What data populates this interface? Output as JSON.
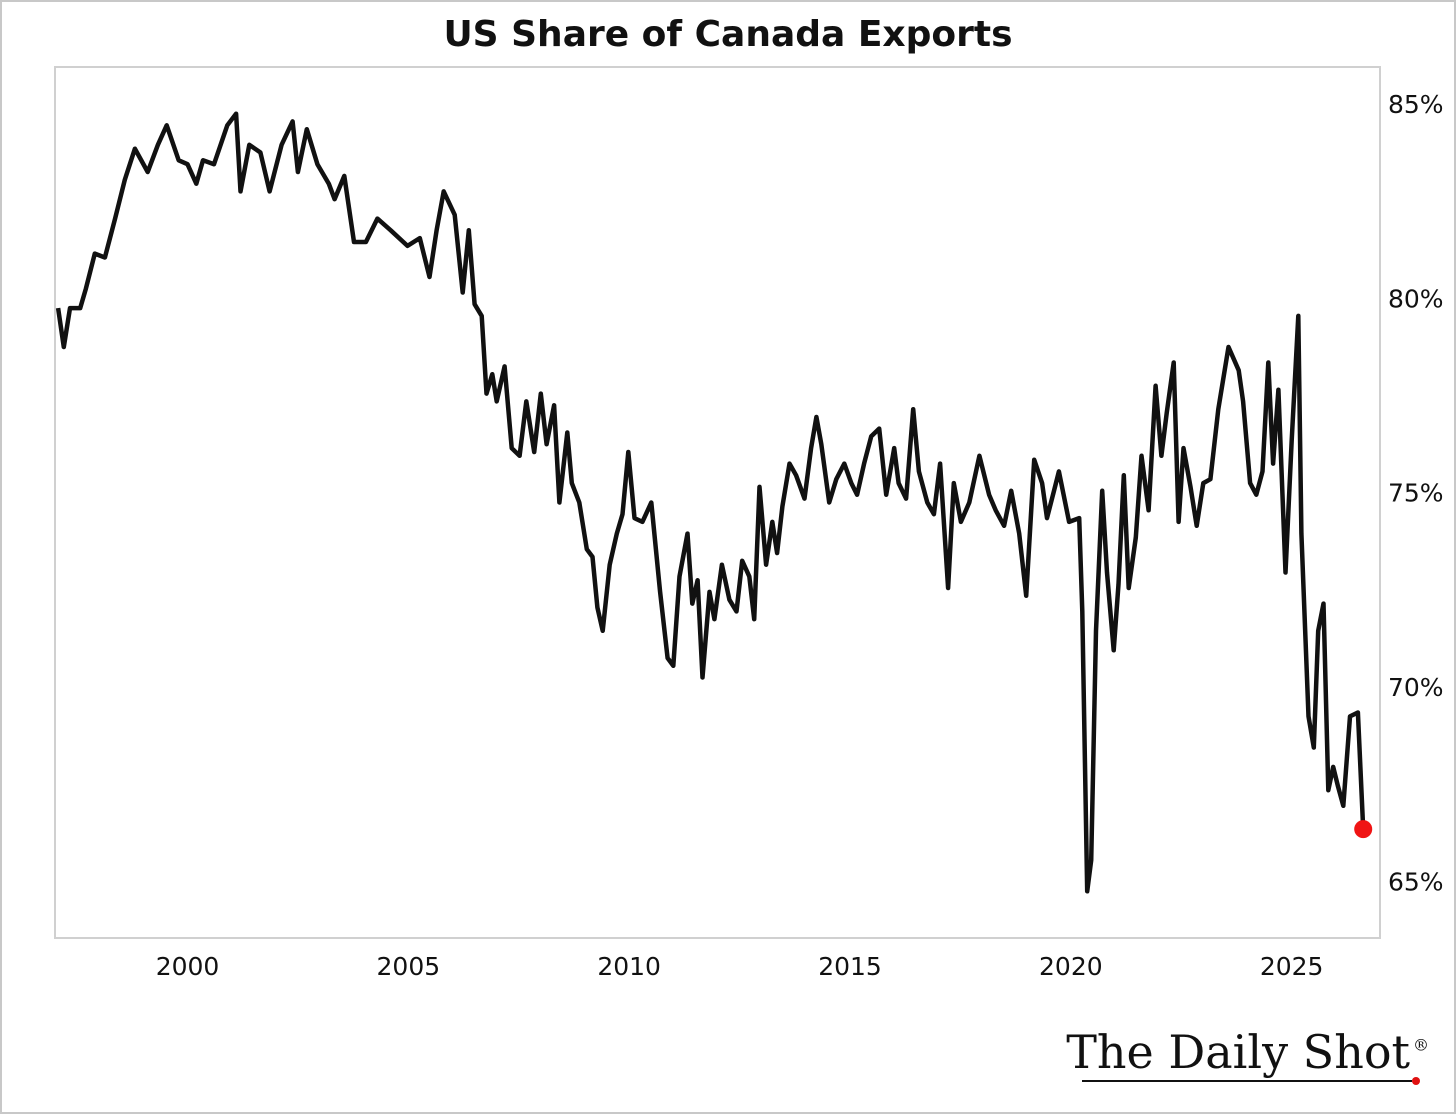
{
  "chart_data": {
    "type": "line",
    "title": "US Share of Canada Exports",
    "x": [
      1997.07,
      1997.2,
      1997.34,
      1997.57,
      1997.7,
      1997.9,
      1998.13,
      1998.36,
      1998.58,
      1998.81,
      1999.1,
      1999.33,
      1999.53,
      1999.8,
      2000.0,
      2000.2,
      2000.35,
      2000.6,
      2000.9,
      2001.1,
      2001.2,
      2001.4,
      2001.65,
      2001.86,
      2002.13,
      2002.38,
      2002.5,
      2002.7,
      2002.94,
      2003.2,
      2003.33,
      2003.55,
      2003.77,
      2004.04,
      2004.3,
      2004.6,
      2004.98,
      2005.26,
      2005.48,
      2005.64,
      2005.8,
      2006.05,
      2006.23,
      2006.37,
      2006.5,
      2006.66,
      2006.77,
      2006.9,
      2007.0,
      2007.18,
      2007.34,
      2007.52,
      2007.67,
      2007.85,
      2008.0,
      2008.13,
      2008.3,
      2008.42,
      2008.6,
      2008.7,
      2008.87,
      2009.04,
      2009.17,
      2009.28,
      2009.4,
      2009.56,
      2009.72,
      2009.85,
      2009.98,
      2010.12,
      2010.3,
      2010.5,
      2010.7,
      2010.87,
      2011.0,
      2011.14,
      2011.32,
      2011.43,
      2011.55,
      2011.66,
      2011.82,
      2011.93,
      2012.1,
      2012.27,
      2012.43,
      2012.56,
      2012.72,
      2012.83,
      2012.95,
      2013.1,
      2013.24,
      2013.35,
      2013.47,
      2013.63,
      2013.78,
      2013.97,
      2014.12,
      2014.24,
      2014.35,
      2014.53,
      2014.69,
      2014.87,
      2015.03,
      2015.16,
      2015.32,
      2015.48,
      2015.66,
      2015.82,
      2016.0,
      2016.1,
      2016.27,
      2016.43,
      2016.56,
      2016.75,
      2016.9,
      2017.04,
      2017.22,
      2017.35,
      2017.51,
      2017.7,
      2017.93,
      2018.15,
      2018.3,
      2018.49,
      2018.65,
      2018.83,
      2018.99,
      2019.17,
      2019.35,
      2019.46,
      2019.62,
      2019.73,
      2019.96,
      2020.19,
      2020.26,
      2020.37,
      2020.46,
      2020.57,
      2020.71,
      2020.82,
      2020.97,
      2021.08,
      2021.2,
      2021.31,
      2021.47,
      2021.6,
      2021.76,
      2021.92,
      2022.05,
      2022.17,
      2022.33,
      2022.44,
      2022.55,
      2022.71,
      2022.85,
      2023.0,
      2023.16,
      2023.34,
      2023.57,
      2023.8,
      2023.9,
      2024.06,
      2024.2,
      2024.34,
      2024.47,
      2024.58,
      2024.7,
      2024.86,
      2025.0,
      2025.15,
      2025.22,
      2025.38,
      2025.5,
      2025.6,
      2025.72,
      2025.83,
      2025.94,
      2026.05,
      2026.17,
      2026.32,
      2026.5,
      2026.62
    ],
    "values": [
      79.8,
      78.8,
      79.8,
      79.8,
      80.3,
      81.2,
      81.1,
      82.1,
      83.1,
      83.9,
      83.3,
      84.0,
      84.5,
      83.6,
      83.5,
      83.0,
      83.6,
      83.5,
      84.5,
      84.8,
      82.8,
      84.0,
      83.8,
      82.8,
      84.0,
      84.6,
      83.3,
      84.4,
      83.5,
      83.0,
      82.6,
      83.2,
      81.5,
      81.5,
      82.1,
      81.8,
      81.4,
      81.6,
      80.6,
      81.8,
      82.8,
      82.2,
      80.2,
      81.8,
      79.9,
      79.6,
      77.6,
      78.1,
      77.4,
      78.3,
      76.2,
      76.0,
      77.4,
      76.1,
      77.6,
      76.3,
      77.3,
      74.8,
      76.6,
      75.3,
      74.8,
      73.6,
      73.4,
      72.1,
      71.5,
      73.2,
      74.0,
      74.5,
      76.1,
      74.4,
      74.3,
      74.8,
      72.5,
      70.8,
      70.6,
      72.9,
      74.0,
      72.2,
      72.8,
      70.3,
      72.5,
      71.8,
      73.2,
      72.3,
      72.0,
      73.3,
      72.9,
      71.8,
      75.2,
      73.2,
      74.3,
      73.5,
      74.7,
      75.8,
      75.5,
      74.9,
      76.2,
      77.0,
      76.3,
      74.8,
      75.4,
      75.8,
      75.3,
      75.0,
      75.8,
      76.5,
      76.7,
      75.0,
      76.2,
      75.3,
      74.9,
      77.2,
      75.6,
      74.8,
      74.5,
      75.8,
      72.6,
      75.3,
      74.3,
      74.8,
      76.0,
      75.0,
      74.6,
      74.2,
      75.1,
      74.0,
      72.4,
      75.9,
      75.3,
      74.4,
      75.1,
      75.6,
      74.3,
      74.4,
      72.0,
      64.8,
      65.6,
      71.5,
      75.1,
      73.0,
      71.0,
      72.7,
      75.5,
      72.6,
      73.9,
      76.0,
      74.6,
      77.8,
      76.0,
      77.1,
      78.4,
      74.3,
      76.2,
      75.2,
      74.2,
      75.3,
      75.4,
      77.2,
      78.8,
      78.2,
      77.4,
      75.3,
      75.0,
      75.6,
      78.4,
      75.8,
      77.7,
      73.0,
      76.4,
      79.6,
      74.0,
      69.3,
      68.5,
      71.5,
      72.2,
      67.4,
      68.0,
      67.5,
      67.0,
      69.3,
      69.4,
      66.4
    ],
    "color": "#111111",
    "highlight_color": "#f01414",
    "xlim": [
      1997,
      2027
    ],
    "xticks": [
      2000,
      2005,
      2010,
      2015,
      2020,
      2025
    ],
    "ylim": [
      63.6,
      86
    ],
    "yticks": [
      {
        "value": 65,
        "label": "65%"
      },
      {
        "value": 70,
        "label": "70%"
      },
      {
        "value": 75,
        "label": "75%"
      },
      {
        "value": 80,
        "label": "80%"
      },
      {
        "value": 85,
        "label": "85%"
      }
    ],
    "y_axis_side": "right",
    "grid": false,
    "logo": "The Daily Shot",
    "logo_mark": "®"
  }
}
